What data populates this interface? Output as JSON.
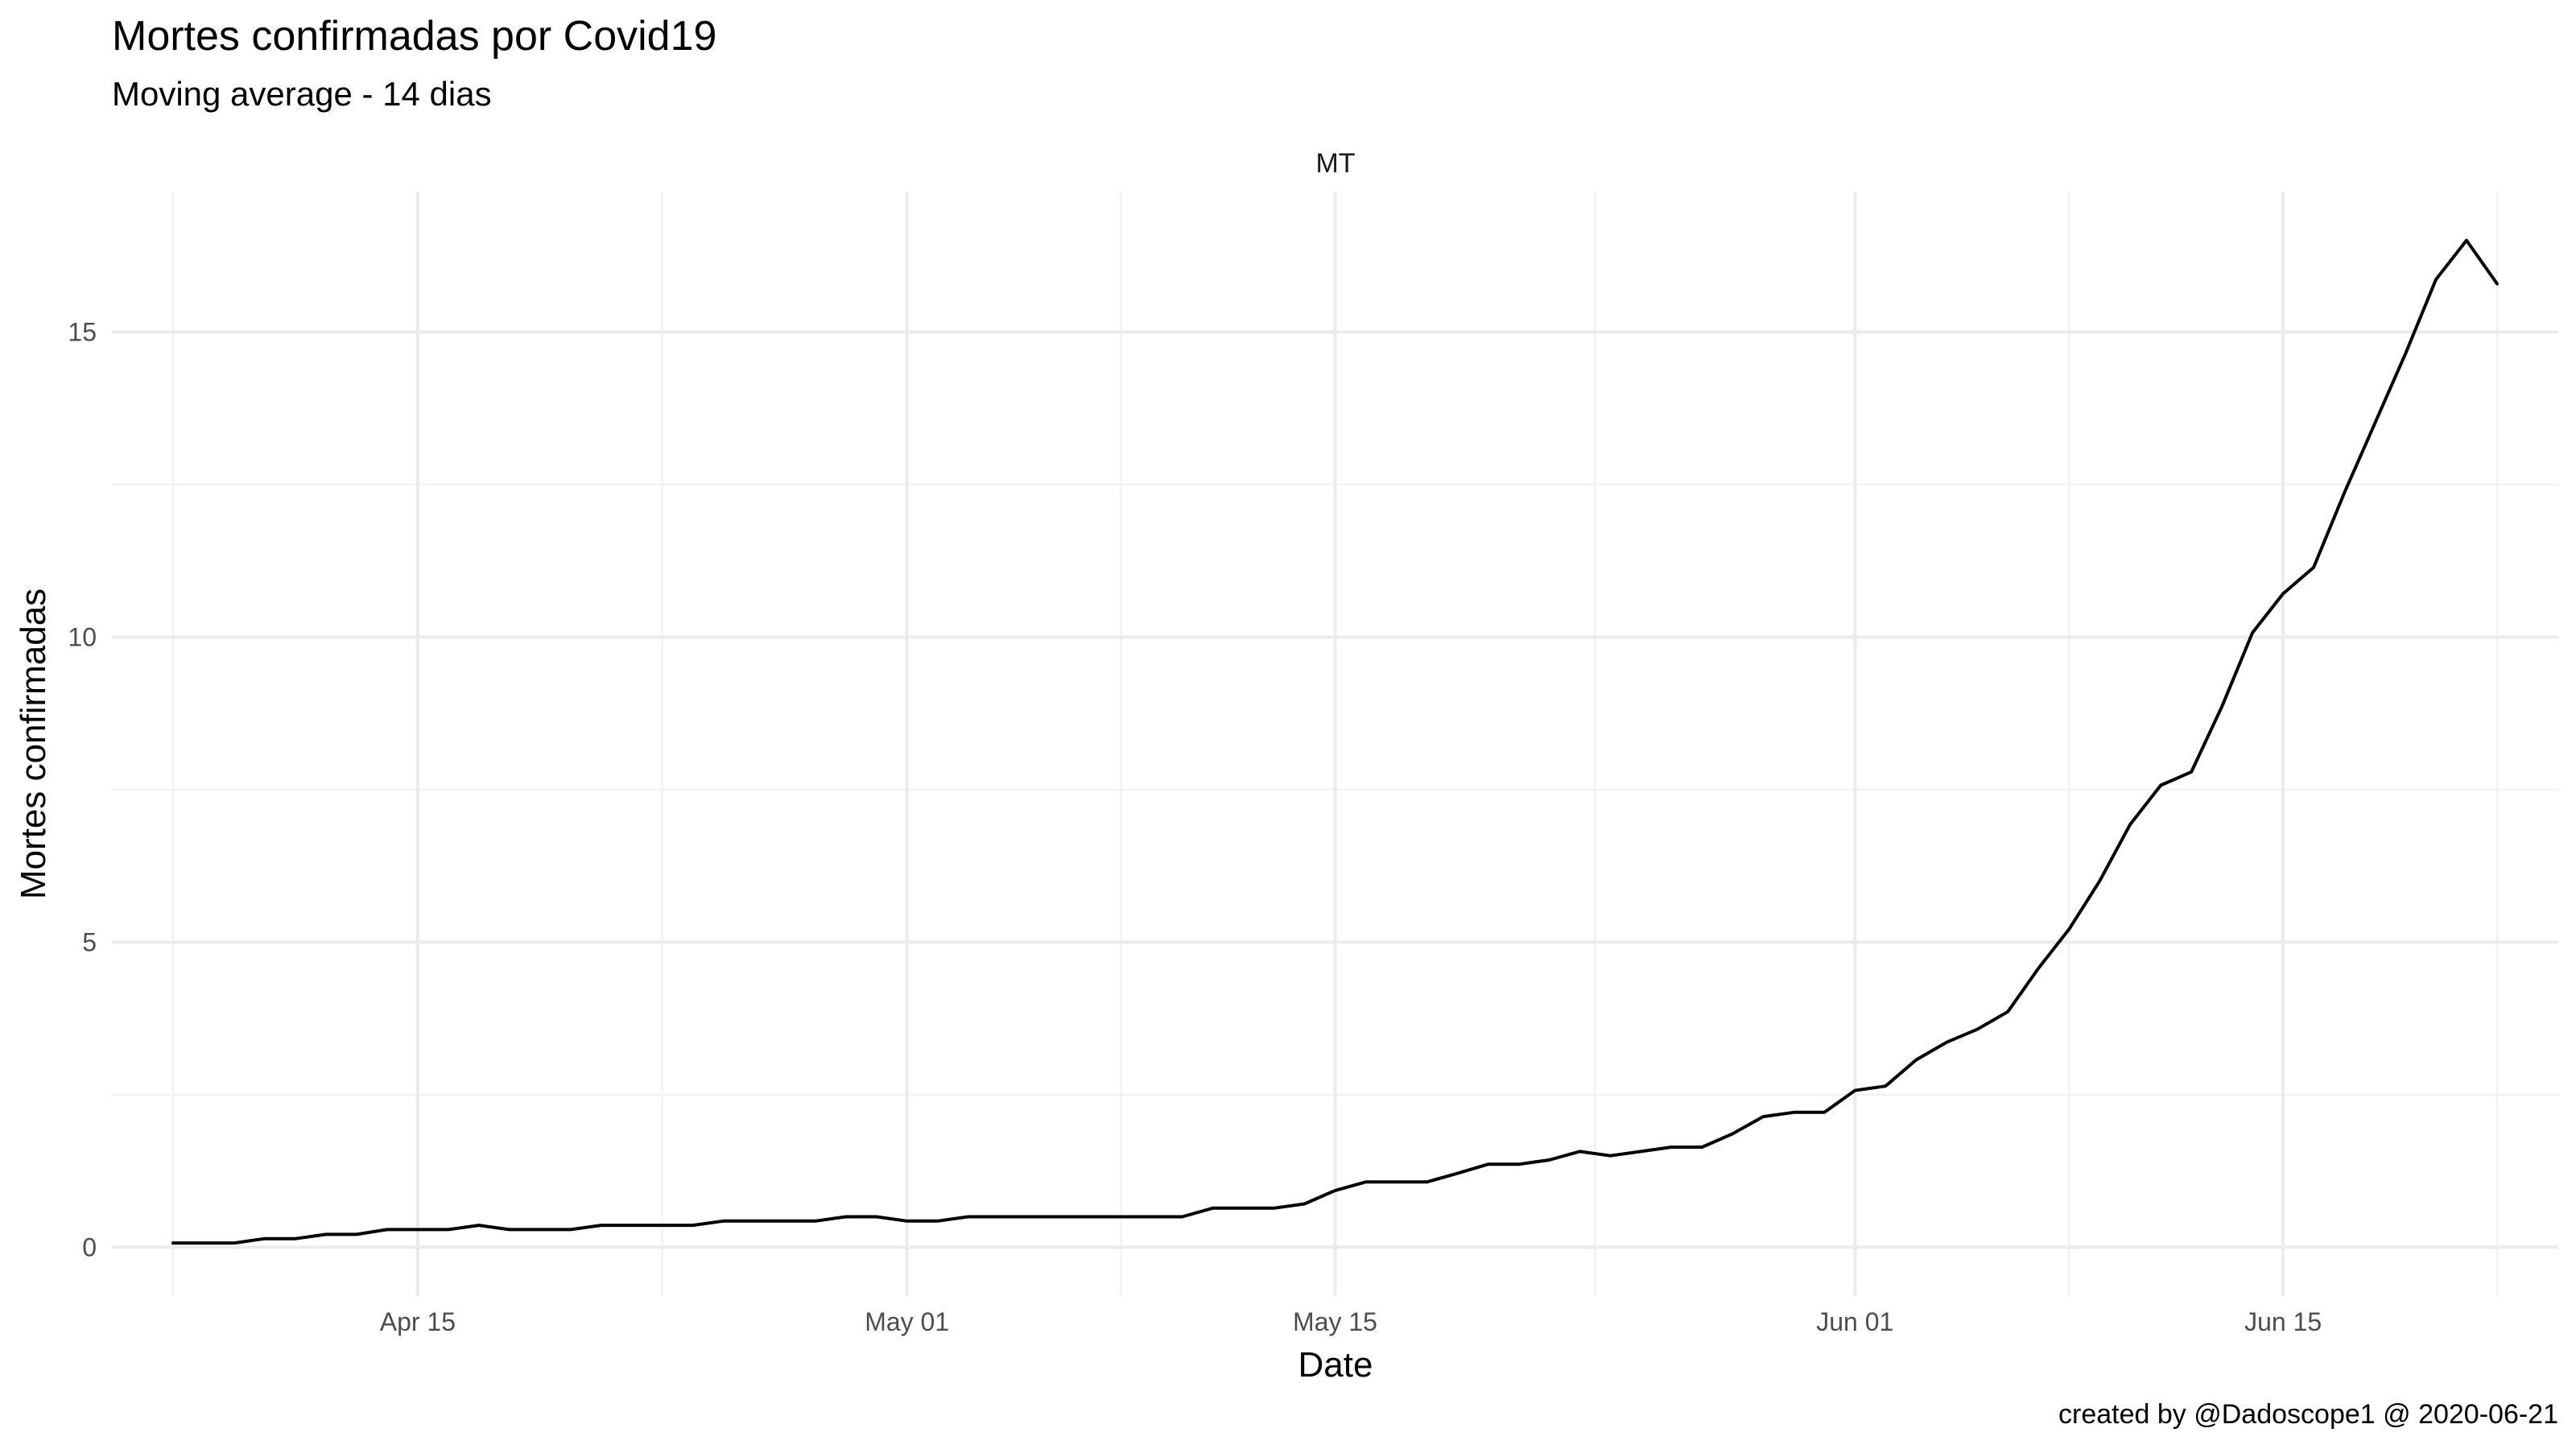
{
  "chart_data": {
    "type": "line",
    "title": "Mortes confirmadas por Covid19",
    "subtitle": "Moving average - 14 dias",
    "facet": "MT",
    "xlabel": "Date",
    "ylabel": "Mortes confirmadas",
    "caption": "created by @Dadoscope1 @ 2020-06-21",
    "xlim": [
      "2020-04-05",
      "2020-06-24"
    ],
    "ylim": [
      -0.8,
      17.3
    ],
    "grid": true,
    "x_ticks": [
      {
        "date": "2020-04-15",
        "label": "Apr 15"
      },
      {
        "date": "2020-05-01",
        "label": "May 01"
      },
      {
        "date": "2020-05-15",
        "label": "May 15"
      },
      {
        "date": "2020-06-01",
        "label": "Jun 01"
      },
      {
        "date": "2020-06-15",
        "label": "Jun 15"
      }
    ],
    "y_ticks": [
      {
        "value": 0,
        "label": "0"
      },
      {
        "value": 5,
        "label": "5"
      },
      {
        "value": 10,
        "label": "10"
      },
      {
        "value": 15,
        "label": "15"
      }
    ],
    "series": [
      {
        "color": "#000000",
        "points": [
          [
            "2020-04-07",
            0.07
          ],
          [
            "2020-04-08",
            0.07
          ],
          [
            "2020-04-09",
            0.07
          ],
          [
            "2020-04-10",
            0.14
          ],
          [
            "2020-04-11",
            0.14
          ],
          [
            "2020-04-12",
            0.21
          ],
          [
            "2020-04-13",
            0.21
          ],
          [
            "2020-04-14",
            0.29
          ],
          [
            "2020-04-15",
            0.29
          ],
          [
            "2020-04-16",
            0.29
          ],
          [
            "2020-04-17",
            0.36
          ],
          [
            "2020-04-18",
            0.29
          ],
          [
            "2020-04-19",
            0.29
          ],
          [
            "2020-04-20",
            0.29
          ],
          [
            "2020-04-21",
            0.36
          ],
          [
            "2020-04-22",
            0.36
          ],
          [
            "2020-04-23",
            0.36
          ],
          [
            "2020-04-24",
            0.36
          ],
          [
            "2020-04-25",
            0.43
          ],
          [
            "2020-04-26",
            0.43
          ],
          [
            "2020-04-27",
            0.43
          ],
          [
            "2020-04-28",
            0.43
          ],
          [
            "2020-04-29",
            0.5
          ],
          [
            "2020-04-30",
            0.5
          ],
          [
            "2020-05-01",
            0.43
          ],
          [
            "2020-05-02",
            0.43
          ],
          [
            "2020-05-03",
            0.5
          ],
          [
            "2020-05-04",
            0.5
          ],
          [
            "2020-05-05",
            0.5
          ],
          [
            "2020-05-06",
            0.5
          ],
          [
            "2020-05-07",
            0.5
          ],
          [
            "2020-05-08",
            0.5
          ],
          [
            "2020-05-09",
            0.5
          ],
          [
            "2020-05-10",
            0.5
          ],
          [
            "2020-05-11",
            0.64
          ],
          [
            "2020-05-12",
            0.64
          ],
          [
            "2020-05-13",
            0.64
          ],
          [
            "2020-05-14",
            0.71
          ],
          [
            "2020-05-15",
            0.93
          ],
          [
            "2020-05-16",
            1.07
          ],
          [
            "2020-05-17",
            1.07
          ],
          [
            "2020-05-18",
            1.07
          ],
          [
            "2020-05-19",
            1.21
          ],
          [
            "2020-05-20",
            1.36
          ],
          [
            "2020-05-21",
            1.36
          ],
          [
            "2020-05-22",
            1.43
          ],
          [
            "2020-05-23",
            1.57
          ],
          [
            "2020-05-24",
            1.5
          ],
          [
            "2020-05-25",
            1.57
          ],
          [
            "2020-05-26",
            1.64
          ],
          [
            "2020-05-27",
            1.64
          ],
          [
            "2020-05-28",
            1.86
          ],
          [
            "2020-05-29",
            2.14
          ],
          [
            "2020-05-30",
            2.21
          ],
          [
            "2020-05-31",
            2.21
          ],
          [
            "2020-06-01",
            2.57
          ],
          [
            "2020-06-02",
            2.64
          ],
          [
            "2020-06-03",
            3.07
          ],
          [
            "2020-06-04",
            3.36
          ],
          [
            "2020-06-05",
            3.57
          ],
          [
            "2020-06-06",
            3.86
          ],
          [
            "2020-06-07",
            4.57
          ],
          [
            "2020-06-08",
            5.21
          ],
          [
            "2020-06-09",
            6.0
          ],
          [
            "2020-06-10",
            6.93
          ],
          [
            "2020-06-11",
            7.57
          ],
          [
            "2020-06-12",
            7.79
          ],
          [
            "2020-06-13",
            8.86
          ],
          [
            "2020-06-14",
            10.07
          ],
          [
            "2020-06-15",
            10.71
          ],
          [
            "2020-06-16",
            11.14
          ],
          [
            "2020-06-17",
            12.36
          ],
          [
            "2020-06-18",
            13.5
          ],
          [
            "2020-06-19",
            14.64
          ],
          [
            "2020-06-20",
            15.86
          ],
          [
            "2020-06-21",
            16.5
          ],
          [
            "2020-06-22",
            15.79
          ]
        ]
      }
    ]
  }
}
